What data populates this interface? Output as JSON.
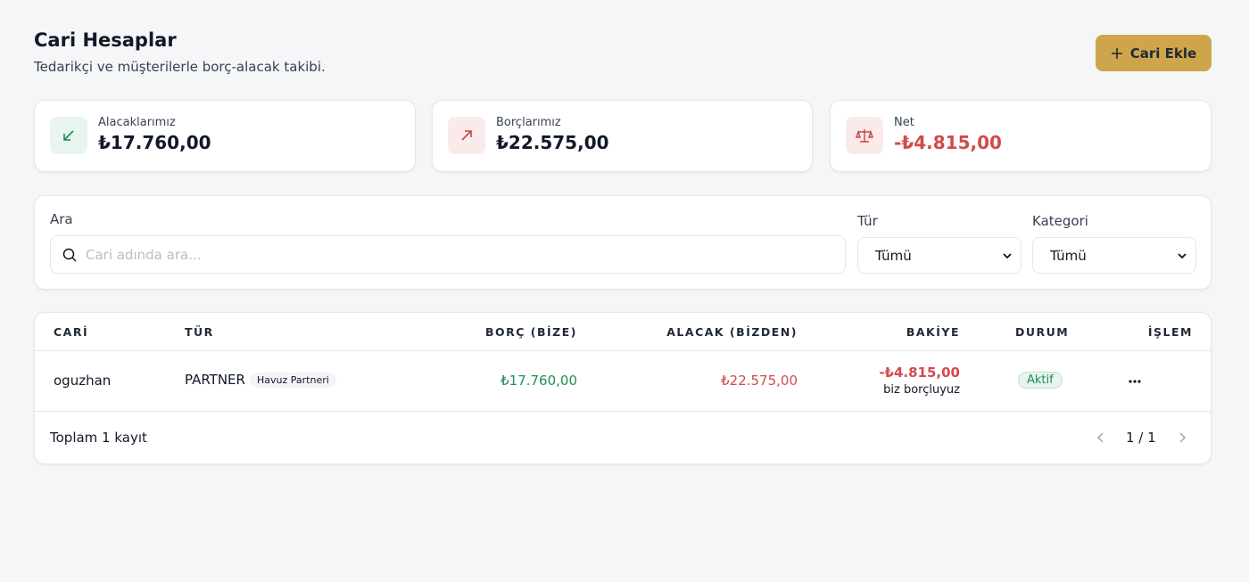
{
  "header": {
    "title": "Cari Hesaplar",
    "subtitle": "Tedarikçi ve müşterilerle borç-alacak takibi.",
    "add_button": "Cari Ekle"
  },
  "summary": [
    {
      "label": "Alacaklarımız",
      "value": "₺17.760,00"
    },
    {
      "label": "Borçlarımız",
      "value": "₺22.575,00"
    },
    {
      "label": "Net",
      "value": "-₺4.815,00"
    }
  ],
  "filters": {
    "search_label": "Ara",
    "search_placeholder": "Cari adında ara...",
    "type_label": "Tür",
    "type_value": "Tümü",
    "category_label": "Kategori",
    "category_value": "Tümü"
  },
  "table": {
    "columns": [
      "CARİ",
      "TÜR",
      "BORÇ (BİZE)",
      "ALACAK (BİZDEN)",
      "BAKİYE",
      "DURUM",
      "İŞLEM"
    ],
    "rows": [
      {
        "name": "oguzhan",
        "type": "PARTNER",
        "category": "Havuz Partneri",
        "debt": "₺17.760,00",
        "credit": "₺22.575,00",
        "balance": "-₺4.815,00",
        "balance_note": "biz borçluyuz",
        "status": "Aktif"
      }
    ]
  },
  "footer": {
    "total": "Toplam 1 kayıt",
    "page": "1 / 1"
  }
}
